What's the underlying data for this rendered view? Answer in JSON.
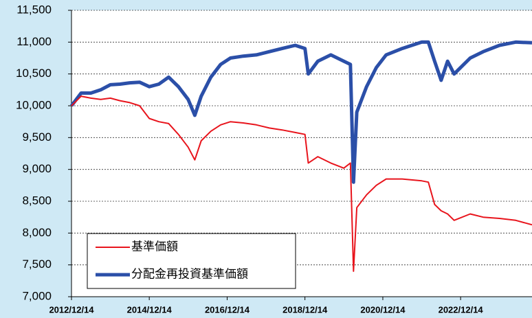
{
  "chart_data": {
    "type": "line",
    "x": [
      "2012/12/14",
      "2013/03/14",
      "2013/06/14",
      "2013/09/14",
      "2013/12/14",
      "2014/03/14",
      "2014/06/14",
      "2014/09/14",
      "2014/12/14",
      "2015/03/14",
      "2015/06/14",
      "2015/09/14",
      "2015/12/14",
      "2016/02/14",
      "2016/04/14",
      "2016/07/14",
      "2016/10/14",
      "2017/01/14",
      "2017/05/14",
      "2017/09/14",
      "2018/01/14",
      "2018/05/14",
      "2018/09/14",
      "2018/12/14",
      "2019/01/14",
      "2019/04/14",
      "2019/08/14",
      "2019/12/14",
      "2020/02/14",
      "2020/03/14",
      "2020/04/14",
      "2020/07/14",
      "2020/10/14",
      "2021/01/14",
      "2021/06/14",
      "2021/12/14",
      "2022/02/14",
      "2022/04/14",
      "2022/06/14",
      "2022/08/14",
      "2022/10/14",
      "2023/03/14",
      "2023/07/14",
      "2023/12/14",
      "2024/05/14",
      "2024/10/14"
    ],
    "series": [
      {
        "name": "基準価額",
        "color": "#e8141c",
        "width": 2,
        "values": [
          10000,
          10150,
          10120,
          10100,
          10120,
          10080,
          10050,
          10000,
          9800,
          9750,
          9720,
          9550,
          9350,
          9150,
          9450,
          9600,
          9700,
          9750,
          9730,
          9700,
          9650,
          9620,
          9580,
          9550,
          9100,
          9200,
          9100,
          9020,
          9100,
          7400,
          8400,
          8600,
          8750,
          8850,
          8850,
          8820,
          8800,
          8450,
          8350,
          8300,
          8200,
          8300,
          8250,
          8230,
          8200,
          8130
        ]
      },
      {
        "name": "分配金再投資基準価額",
        "color": "#2b4fa8",
        "width": 5,
        "values": [
          10000,
          10200,
          10200,
          10250,
          10330,
          10340,
          10360,
          10370,
          10300,
          10340,
          10450,
          10300,
          10100,
          9850,
          10150,
          10450,
          10650,
          10750,
          10780,
          10800,
          10850,
          10900,
          10950,
          10900,
          10500,
          10700,
          10800,
          10700,
          10650,
          8800,
          9900,
          10300,
          10600,
          10800,
          10900,
          11000,
          11000,
          10700,
          10400,
          10700,
          10500,
          10750,
          10850,
          10950,
          11000,
          10990
        ]
      }
    ],
    "xlim": [
      "2012/12/14",
      "2024/10/14"
    ],
    "xticks": [
      "2012/12/14",
      "2014/12/14",
      "2016/12/14",
      "2018/12/14",
      "2020/12/14",
      "2022/12/14"
    ],
    "ylim": [
      7000,
      11500
    ],
    "yticks": [
      {
        "value": 7000,
        "label": "7,000"
      },
      {
        "value": 7500,
        "label": "7,500"
      },
      {
        "value": 8000,
        "label": "8,000"
      },
      {
        "value": 8500,
        "label": "8,500"
      },
      {
        "value": 9000,
        "label": "9,000"
      },
      {
        "value": 9500,
        "label": "9,500"
      },
      {
        "value": 10000,
        "label": "10,000"
      },
      {
        "value": 10500,
        "label": "10,500"
      },
      {
        "value": 11000,
        "label": "11,000"
      },
      {
        "value": 11500,
        "label": "11,500"
      }
    ],
    "grid": true,
    "legend": "lower left"
  }
}
